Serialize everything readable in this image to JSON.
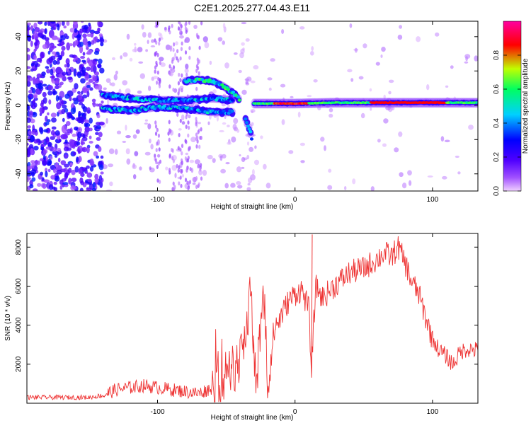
{
  "figure_title": "C2E1.2025.277.04.43.E11",
  "chart_data": [
    {
      "type": "heatmap",
      "title": "C2E1.2025.277.04.43.E11",
      "xlabel": "Height of straight line (km)",
      "ylabel": "Frequency (Hz)",
      "xlim": [
        -195,
        133
      ],
      "ylim": [
        -50,
        49
      ],
      "x_ticks": [
        -100,
        0,
        100
      ],
      "y_ticks": [
        -40,
        -20,
        0,
        20,
        40
      ],
      "colorbar": {
        "label": "Normalized spectral amplitude",
        "range": [
          0.0,
          1.0
        ],
        "ticks": [
          0.0,
          0.2,
          0.4,
          0.6,
          0.8
        ],
        "tick_labels": [
          "0.0",
          "0.2",
          "0.4",
          "0.6",
          "0.8"
        ],
        "colormap": [
          "#f0d0ff",
          "#a050ff",
          "#5000ff",
          "#0000ff",
          "#00d0ff",
          "#00ff60",
          "#c0ff00",
          "#ff0000",
          "#ff00a0"
        ]
      },
      "features": [
        {
          "name": "noise-region",
          "x_range": [
            -195,
            -140
          ],
          "y_range": [
            -50,
            49
          ],
          "amplitude": 0.3
        },
        {
          "name": "upper-band",
          "x": [
            -140,
            -120,
            -100,
            -80,
            -60,
            -45
          ],
          "y": [
            6,
            4,
            3,
            3,
            4,
            3
          ],
          "amplitude": 0.5
        },
        {
          "name": "lower-band",
          "x": [
            -140,
            -120,
            -100,
            -80,
            -60,
            -45
          ],
          "y": [
            -2,
            -3,
            -1,
            -2,
            -4,
            -4
          ],
          "amplitude": 0.5
        },
        {
          "name": "upper-arc",
          "x": [
            -80,
            -70,
            -60,
            -52,
            -45,
            -40
          ],
          "y": [
            14,
            15,
            14,
            11,
            7,
            3
          ],
          "amplitude": 0.6
        },
        {
          "name": "lower-spur",
          "x": [
            -36,
            -33,
            -31
          ],
          "y": [
            -8,
            -14,
            -21
          ],
          "amplitude": 0.5
        },
        {
          "name": "steady-line",
          "x": [
            -30,
            0,
            30,
            60,
            90,
            133
          ],
          "y": [
            1,
            1,
            1.5,
            1.5,
            1.5,
            1.5
          ],
          "amplitude": 0.85
        }
      ]
    },
    {
      "type": "line",
      "xlabel": "Height of straight line (km)",
      "ylabel": "SNR (10 * v/v)",
      "xlim": [
        -195,
        133
      ],
      "ylim": [
        0,
        8700
      ],
      "x_ticks": [
        -100,
        0,
        100
      ],
      "y_ticks": [
        2000,
        4000,
        6000,
        8000
      ],
      "color": "#ee3333",
      "series": [
        {
          "name": "SNR",
          "x": [
            -195,
            -170,
            -150,
            -140,
            -130,
            -120,
            -110,
            -100,
            -90,
            -80,
            -70,
            -60,
            -50,
            -45,
            -40,
            -35,
            -32,
            -30,
            -28,
            -25,
            -22,
            -20,
            -18,
            -15,
            -10,
            -5,
            0,
            5,
            10,
            12,
            15,
            20,
            30,
            40,
            50,
            60,
            65,
            70,
            75,
            80,
            85,
            90,
            95,
            100,
            105,
            110,
            115,
            120,
            125,
            133
          ],
          "y": [
            300,
            300,
            300,
            400,
            700,
            800,
            900,
            800,
            700,
            600,
            500,
            800,
            1500,
            1800,
            2000,
            4000,
            6000,
            2500,
            700,
            4000,
            4800,
            600,
            2000,
            3800,
            4500,
            5200,
            5600,
            5800,
            4800,
            1700,
            6000,
            5400,
            6100,
            6700,
            6900,
            7400,
            7700,
            7500,
            8000,
            7200,
            6200,
            5600,
            4400,
            3300,
            2700,
            2400,
            2000,
            2600,
            2800,
            2700
          ]
        }
      ]
    }
  ]
}
